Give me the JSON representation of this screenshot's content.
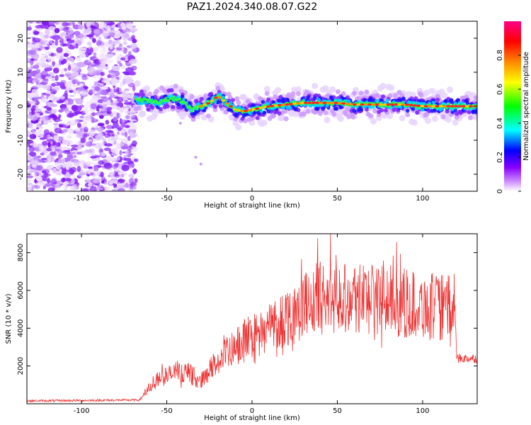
{
  "title": "PAZ1.2024.340.08.07.G22",
  "chart_data": [
    {
      "type": "heatmap",
      "name": "spectrogram",
      "xlabel": "Height of straight line (km)",
      "ylabel": "Frequency (Hz)",
      "xlim": [
        -132,
        132
      ],
      "ylim": [
        -25,
        25
      ],
      "xticks": [
        -100,
        -50,
        0,
        50,
        100
      ],
      "yticks": [
        -20,
        -10,
        0,
        10,
        20
      ],
      "colorbar": {
        "label": "Normalized spectral amplitude",
        "range": [
          0,
          1
        ],
        "ticks": [
          0.0,
          0.2,
          0.4,
          0.6,
          0.8
        ],
        "colors": [
          "#ffffff",
          "#8800ff",
          "#0000ff",
          "#00ffff",
          "#00ff00",
          "#ffff00",
          "#ff8800",
          "#ff0000",
          "#ff0088"
        ]
      },
      "noise_region_x": [
        -132,
        -68
      ],
      "ridge": {
        "x": [
          -68,
          -60,
          -55,
          -50,
          -45,
          -40,
          -35,
          -30,
          -25,
          -20,
          -15,
          -10,
          -5,
          0,
          10,
          20,
          30,
          40,
          50,
          60,
          70,
          80,
          90,
          100,
          110,
          120,
          132
        ],
        "y": [
          2,
          1.5,
          1,
          2,
          2.5,
          1,
          -1,
          0,
          1,
          3,
          1,
          -1,
          -1.5,
          -1,
          0,
          0.5,
          1,
          1,
          1,
          0.5,
          0.5,
          0.5,
          0.5,
          0,
          0,
          0,
          0
        ]
      }
    },
    {
      "type": "line",
      "name": "snr",
      "xlabel": "Height of straight line (km)",
      "ylabel": "SNR (10 * v/v)",
      "xlim": [
        -132,
        132
      ],
      "ylim": [
        0,
        9000
      ],
      "xticks": [
        -100,
        -50,
        0,
        50,
        100
      ],
      "yticks": [
        2000,
        4000,
        6000,
        8000
      ],
      "color": "#ee3333",
      "envelope": {
        "x": [
          -132,
          -66,
          -60,
          -55,
          -50,
          -45,
          -40,
          -35,
          -30,
          -25,
          -20,
          -15,
          -10,
          -5,
          0,
          10,
          20,
          30,
          40,
          50,
          60,
          70,
          80,
          90,
          100,
          110,
          119,
          120,
          125,
          132
        ],
        "y": [
          150,
          200,
          900,
          1300,
          1500,
          1600,
          1700,
          1500,
          1200,
          1800,
          2200,
          2600,
          2900,
          3300,
          3600,
          4100,
          4600,
          5200,
          5600,
          5700,
          5700,
          5600,
          5500,
          5300,
          5200,
          5100,
          5100,
          2400,
          2400,
          2400
        ]
      }
    }
  ]
}
